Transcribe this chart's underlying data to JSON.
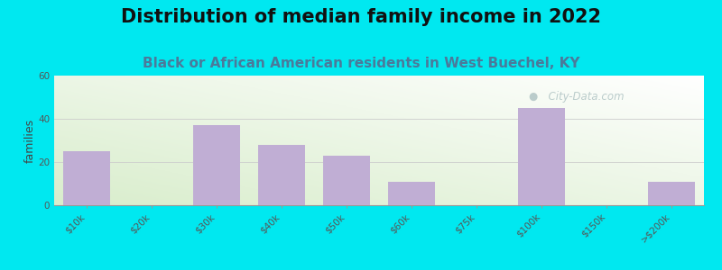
{
  "title": "Distribution of median family income in 2022",
  "subtitle": "Black or African American residents in West Buechel, KY",
  "ylabel": "families",
  "categories": [
    "$10k",
    "$20k",
    "$30k",
    "$40k",
    "$50k",
    "$60k",
    "$75k",
    "$100k",
    "$150k",
    ">$200k"
  ],
  "values": [
    25,
    0,
    37,
    28,
    23,
    11,
    0,
    45,
    0,
    11
  ],
  "bar_color": "#c0aed4",
  "background_color_fig": "#00e8f0",
  "ylim": [
    0,
    60
  ],
  "yticks": [
    0,
    20,
    40,
    60
  ],
  "title_fontsize": 15,
  "subtitle_fontsize": 11,
  "ylabel_fontsize": 9,
  "tick_fontsize": 7.5,
  "watermark_text": "  City-Data.com"
}
